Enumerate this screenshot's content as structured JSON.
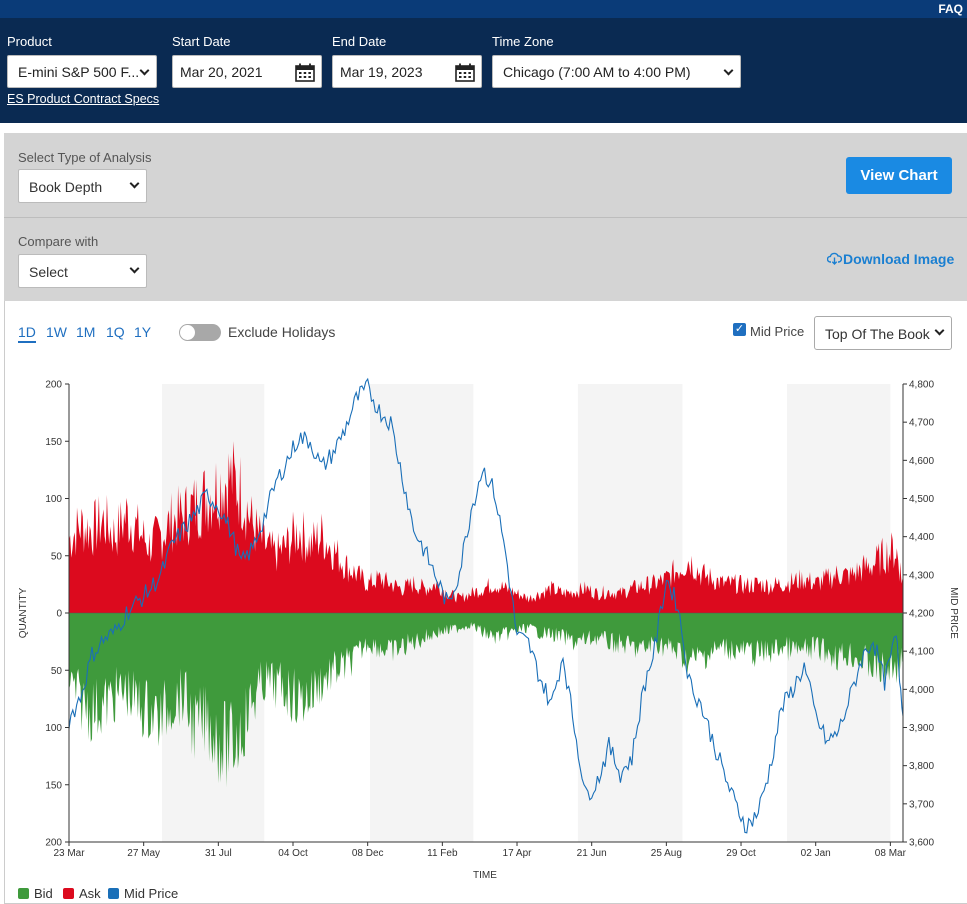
{
  "topbar": {
    "faq": "FAQ"
  },
  "header": {
    "product": {
      "label": "Product",
      "value": "E-mini S&P 500 F..."
    },
    "start_date": {
      "label": "Start Date",
      "value": "Mar 20, 2021"
    },
    "end_date": {
      "label": "End Date",
      "value": "Mar 19, 2023"
    },
    "time_zone": {
      "label": "Time Zone",
      "value": "Chicago (7:00 AM to 4:00 PM)"
    },
    "spec_link": "ES Product Contract Specs"
  },
  "controls": {
    "analysis_label": "Select Type of Analysis",
    "analysis_value": "Book Depth",
    "compare_label": "Compare with",
    "compare_value": "Select",
    "view_chart": "View Chart",
    "download": "Download Image"
  },
  "chart_toolbar": {
    "ranges": [
      "1D",
      "1W",
      "1M",
      "1Q",
      "1Y"
    ],
    "active_range": "1D",
    "exclude_holidays": "Exclude Holidays",
    "exclude_holidays_on": false,
    "mid_price_checkbox": "Mid Price",
    "mid_price_checked": true,
    "book_select": "Top Of The Book"
  },
  "colors": {
    "bid": "#3f9a3c",
    "ask": "#dc0a1e",
    "mid": "#1a6fb8",
    "shade": "#f4f4f4"
  },
  "chart_data": {
    "type": "area",
    "xlabel": "TIME",
    "ylabel_left": "QUANTITY",
    "ylabel_right": "MID PRICE",
    "y_left_ticks": [
      "200",
      "150",
      "100",
      "50",
      "0",
      "50",
      "100",
      "150",
      "200"
    ],
    "y_left_range": [
      -200,
      200
    ],
    "y_right_ticks": [
      "4,800",
      "4,700",
      "4,600",
      "4,500",
      "4,400",
      "4,300",
      "4,200",
      "4,100",
      "4,000",
      "3,900",
      "3,800",
      "3,700",
      "3,600"
    ],
    "y_right_range": [
      3600,
      4800
    ],
    "x_ticks": [
      "23 Mar",
      "27 May",
      "31 Jul",
      "04 Oct",
      "08 Dec",
      "11 Feb",
      "17 Apr",
      "21 Jun",
      "25 Aug",
      "29 Oct",
      "02 Jan",
      "08 Mar"
    ],
    "x_tick_offsets_days": [
      0,
      65,
      130,
      195,
      260,
      325,
      390,
      455,
      520,
      585,
      650,
      715
    ],
    "x_range_days": [
      0,
      726
    ],
    "shaded_bands_days": [
      [
        81,
        170
      ],
      [
        262,
        352
      ],
      [
        443,
        534
      ],
      [
        625,
        715
      ]
    ],
    "series": [
      {
        "name": "Ask",
        "x": [
          0,
          10,
          20,
          30,
          40,
          50,
          60,
          70,
          80,
          90,
          100,
          110,
          120,
          130,
          140,
          150,
          160,
          170,
          180,
          190,
          200,
          210,
          220,
          230,
          240,
          250,
          260,
          270,
          280,
          290,
          300,
          310,
          320,
          330,
          340,
          350,
          360,
          370,
          380,
          390,
          400,
          410,
          420,
          430,
          440,
          450,
          460,
          470,
          480,
          490,
          500,
          510,
          520,
          530,
          540,
          550,
          560,
          570,
          580,
          590,
          600,
          610,
          620,
          630,
          640,
          650,
          660,
          670,
          680,
          690,
          700,
          710,
          720,
          726
        ],
        "values": [
          75,
          90,
          85,
          95,
          80,
          100,
          85,
          70,
          80,
          95,
          100,
          110,
          120,
          130,
          140,
          125,
          90,
          70,
          60,
          70,
          85,
          70,
          80,
          65,
          50,
          40,
          30,
          35,
          30,
          25,
          30,
          25,
          30,
          20,
          15,
          20,
          25,
          30,
          25,
          20,
          15,
          20,
          25,
          20,
          22,
          25,
          20,
          22,
          20,
          25,
          28,
          30,
          35,
          45,
          55,
          40,
          35,
          30,
          30,
          28,
          30,
          28,
          30,
          32,
          35,
          30,
          35,
          40,
          38,
          45,
          50,
          60,
          65,
          30
        ]
      },
      {
        "name": "Bid",
        "x": [
          0,
          10,
          20,
          30,
          40,
          50,
          60,
          70,
          80,
          90,
          100,
          110,
          120,
          130,
          140,
          150,
          160,
          170,
          180,
          190,
          200,
          210,
          220,
          230,
          240,
          250,
          260,
          270,
          280,
          290,
          300,
          310,
          320,
          330,
          340,
          350,
          360,
          370,
          380,
          390,
          400,
          410,
          420,
          430,
          440,
          450,
          460,
          470,
          480,
          490,
          500,
          510,
          520,
          530,
          540,
          550,
          560,
          570,
          580,
          590,
          600,
          610,
          620,
          630,
          640,
          650,
          660,
          670,
          680,
          690,
          700,
          710,
          720,
          726
        ],
        "values": [
          -70,
          -90,
          -100,
          -95,
          -85,
          -80,
          -95,
          -100,
          -110,
          -90,
          -85,
          -120,
          -110,
          -130,
          -140,
          -120,
          -90,
          -70,
          -75,
          -80,
          -90,
          -85,
          -70,
          -60,
          -55,
          -45,
          -30,
          -35,
          -40,
          -35,
          -30,
          -25,
          -20,
          -18,
          -15,
          -12,
          -20,
          -25,
          -22,
          -18,
          -15,
          -20,
          -22,
          -25,
          -30,
          -28,
          -25,
          -30,
          -32,
          -35,
          -38,
          -30,
          -35,
          -40,
          -50,
          -45,
          -40,
          -35,
          -38,
          -40,
          -42,
          -40,
          -35,
          -38,
          -40,
          -35,
          -40,
          -45,
          -42,
          -48,
          -55,
          -60,
          -55,
          -45
        ]
      },
      {
        "name": "Mid Price",
        "x": [
          0,
          10,
          20,
          30,
          40,
          50,
          60,
          70,
          80,
          90,
          100,
          110,
          120,
          130,
          140,
          150,
          160,
          170,
          180,
          190,
          200,
          210,
          220,
          230,
          240,
          250,
          260,
          270,
          280,
          290,
          300,
          310,
          320,
          330,
          340,
          350,
          360,
          370,
          380,
          390,
          400,
          410,
          420,
          430,
          440,
          450,
          460,
          470,
          480,
          490,
          500,
          510,
          520,
          530,
          540,
          550,
          560,
          570,
          580,
          590,
          600,
          610,
          620,
          630,
          640,
          650,
          660,
          670,
          680,
          690,
          700,
          710,
          720,
          726
        ],
        "values": [
          3920,
          3980,
          4090,
          4130,
          4150,
          4200,
          4230,
          4260,
          4300,
          4380,
          4420,
          4460,
          4510,
          4480,
          4420,
          4330,
          4370,
          4450,
          4540,
          4600,
          4660,
          4650,
          4580,
          4620,
          4680,
          4760,
          4790,
          4730,
          4700,
          4560,
          4420,
          4360,
          4290,
          4220,
          4310,
          4470,
          4580,
          4520,
          4360,
          4140,
          4120,
          4030,
          3960,
          4090,
          3900,
          3720,
          3760,
          3850,
          3780,
          3820,
          4000,
          4110,
          4290,
          4220,
          4020,
          3960,
          3870,
          3780,
          3700,
          3640,
          3680,
          3790,
          3950,
          4000,
          4060,
          3930,
          3860,
          3890,
          3980,
          4080,
          4130,
          4020,
          4140,
          3930
        ]
      }
    ]
  },
  "legend": [
    "Bid",
    "Ask",
    "Mid Price"
  ]
}
